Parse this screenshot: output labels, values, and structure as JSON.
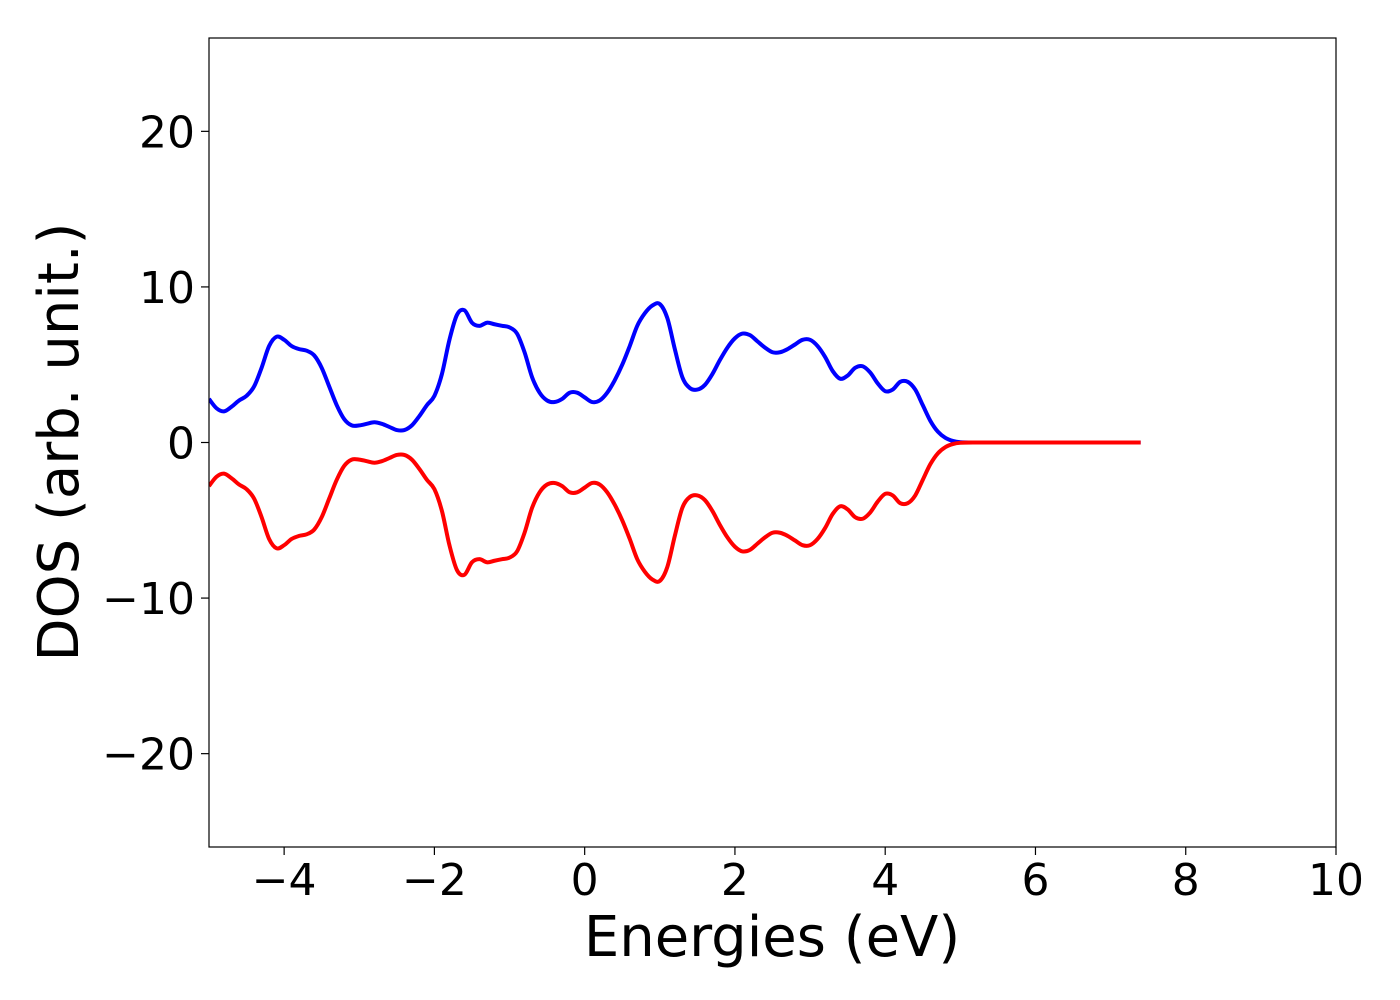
{
  "chart_data": {
    "type": "line",
    "title": "",
    "xlabel": "Energies (eV)",
    "ylabel": "DOS (arb. unit.)",
    "xlim": [
      -5,
      10
    ],
    "ylim": [
      -26,
      26
    ],
    "xticks": [
      -4,
      -2,
      0,
      2,
      4,
      6,
      8,
      10
    ],
    "yticks": [
      -20,
      -10,
      0,
      10,
      20
    ],
    "xtick_labels": [
      "−4",
      "−2",
      "0",
      "2",
      "4",
      "6",
      "8",
      "10"
    ],
    "ytick_labels": [
      "−20",
      "−10",
      "0",
      "10",
      "20"
    ],
    "grid": false,
    "legend": false,
    "x": [
      -5.0,
      -4.9,
      -4.8,
      -4.7,
      -4.6,
      -4.5,
      -4.4,
      -4.3,
      -4.2,
      -4.1,
      -4.0,
      -3.9,
      -3.8,
      -3.7,
      -3.6,
      -3.5,
      -3.4,
      -3.3,
      -3.2,
      -3.1,
      -3.0,
      -2.9,
      -2.8,
      -2.7,
      -2.6,
      -2.5,
      -2.4,
      -2.3,
      -2.2,
      -2.1,
      -2.0,
      -1.9,
      -1.8,
      -1.7,
      -1.6,
      -1.5,
      -1.4,
      -1.3,
      -1.2,
      -1.1,
      -1.0,
      -0.9,
      -0.8,
      -0.7,
      -0.6,
      -0.5,
      -0.4,
      -0.3,
      -0.2,
      -0.1,
      0.0,
      0.1,
      0.2,
      0.3,
      0.4,
      0.5,
      0.6,
      0.7,
      0.8,
      0.9,
      1.0,
      1.1,
      1.2,
      1.3,
      1.4,
      1.5,
      1.6,
      1.7,
      1.8,
      1.9,
      2.0,
      2.1,
      2.2,
      2.3,
      2.4,
      2.5,
      2.6,
      2.7,
      2.8,
      2.9,
      3.0,
      3.1,
      3.2,
      3.3,
      3.4,
      3.5,
      3.6,
      3.7,
      3.8,
      3.9,
      4.0,
      4.1,
      4.2,
      4.3,
      4.4,
      4.5,
      4.6,
      4.7,
      4.8,
      4.9,
      5.0,
      5.2,
      5.5,
      6.0,
      6.5,
      7.0,
      7.4
    ],
    "series": [
      {
        "color": "#0000ff",
        "values": [
          2.8,
          2.2,
          2.0,
          2.3,
          2.7,
          3.0,
          3.6,
          4.8,
          6.2,
          6.8,
          6.6,
          6.2,
          6.0,
          5.9,
          5.6,
          4.8,
          3.6,
          2.4,
          1.5,
          1.1,
          1.1,
          1.2,
          1.3,
          1.2,
          1.0,
          0.8,
          0.8,
          1.1,
          1.7,
          2.4,
          3.0,
          4.4,
          6.6,
          8.2,
          8.5,
          7.7,
          7.5,
          7.7,
          7.6,
          7.5,
          7.4,
          7.0,
          5.8,
          4.2,
          3.2,
          2.7,
          2.6,
          2.8,
          3.2,
          3.2,
          2.9,
          2.6,
          2.7,
          3.2,
          4.0,
          5.0,
          6.2,
          7.5,
          8.3,
          8.8,
          8.9,
          8.0,
          6.0,
          4.2,
          3.5,
          3.4,
          3.7,
          4.4,
          5.3,
          6.1,
          6.7,
          7.0,
          6.9,
          6.5,
          6.1,
          5.8,
          5.8,
          6.0,
          6.3,
          6.6,
          6.6,
          6.2,
          5.5,
          4.6,
          4.1,
          4.3,
          4.8,
          4.9,
          4.5,
          3.8,
          3.3,
          3.4,
          3.9,
          3.9,
          3.4,
          2.4,
          1.4,
          0.7,
          0.3,
          0.1,
          0.02,
          0.0,
          0.0,
          0.0,
          0.0,
          0.0,
          0.0
        ]
      },
      {
        "color": "#ff0000",
        "values": [
          -2.8,
          -2.2,
          -2.0,
          -2.3,
          -2.7,
          -3.0,
          -3.6,
          -4.8,
          -6.2,
          -6.8,
          -6.6,
          -6.2,
          -6.0,
          -5.9,
          -5.6,
          -4.8,
          -3.6,
          -2.4,
          -1.5,
          -1.1,
          -1.1,
          -1.2,
          -1.3,
          -1.2,
          -1.0,
          -0.8,
          -0.8,
          -1.1,
          -1.7,
          -2.4,
          -3.0,
          -4.4,
          -6.6,
          -8.2,
          -8.5,
          -7.7,
          -7.5,
          -7.7,
          -7.6,
          -7.5,
          -7.4,
          -7.0,
          -5.8,
          -4.2,
          -3.2,
          -2.7,
          -2.6,
          -2.8,
          -3.2,
          -3.2,
          -2.9,
          -2.6,
          -2.7,
          -3.2,
          -4.0,
          -5.0,
          -6.2,
          -7.5,
          -8.3,
          -8.8,
          -8.9,
          -8.0,
          -6.0,
          -4.2,
          -3.5,
          -3.4,
          -3.7,
          -4.4,
          -5.3,
          -6.1,
          -6.7,
          -7.0,
          -6.9,
          -6.5,
          -6.1,
          -5.8,
          -5.8,
          -6.0,
          -6.3,
          -6.6,
          -6.6,
          -6.2,
          -5.5,
          -4.6,
          -4.1,
          -4.3,
          -4.8,
          -4.9,
          -4.5,
          -3.8,
          -3.3,
          -3.4,
          -3.9,
          -3.9,
          -3.4,
          -2.4,
          -1.4,
          -0.7,
          -0.3,
          -0.1,
          -0.02,
          0.0,
          0.0,
          0.0,
          0.0,
          0.0,
          0.0
        ]
      }
    ]
  }
}
